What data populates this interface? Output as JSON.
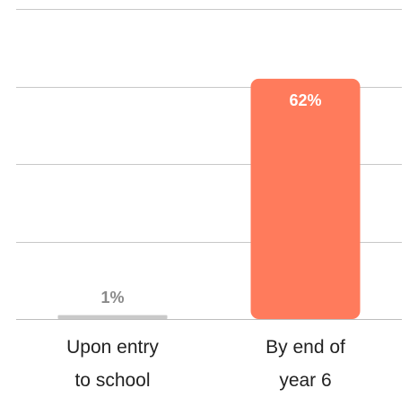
{
  "chart_data": {
    "type": "bar",
    "categories": [
      [
        "Upon entry",
        "to school"
      ],
      [
        "By end of",
        "year 6"
      ]
    ],
    "values": [
      1,
      62
    ],
    "value_labels": [
      "1%",
      "62%"
    ],
    "ylim": [
      0,
      80
    ],
    "grid": true,
    "legend": "none",
    "colors": {
      "bars": [
        "#c9c9c9",
        "#ff7b5c"
      ],
      "labels_inside": "#ffffff",
      "labels_outside": "#8a8a8a",
      "grid": "#c8c8c8"
    }
  }
}
